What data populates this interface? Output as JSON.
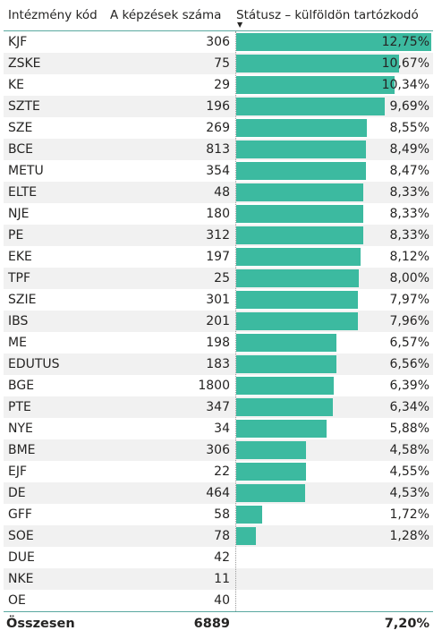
{
  "headers": {
    "code": "Intézmény kód",
    "count": "A képzések száma",
    "pct": "Státusz – külföldön tartózkodó"
  },
  "chart_data": {
    "type": "table",
    "bar_scale_max": 12.75,
    "rows": [
      {
        "code": "KJF",
        "count": "306",
        "pct": "12,75%",
        "value": 12.75
      },
      {
        "code": "ZSKE",
        "count": "75",
        "pct": "10,67%",
        "value": 10.67
      },
      {
        "code": "KE",
        "count": "29",
        "pct": "10,34%",
        "value": 10.34
      },
      {
        "code": "SZTE",
        "count": "196",
        "pct": "9,69%",
        "value": 9.69
      },
      {
        "code": "SZE",
        "count": "269",
        "pct": "8,55%",
        "value": 8.55
      },
      {
        "code": "BCE",
        "count": "813",
        "pct": "8,49%",
        "value": 8.49
      },
      {
        "code": "METU",
        "count": "354",
        "pct": "8,47%",
        "value": 8.47
      },
      {
        "code": "ELTE",
        "count": "48",
        "pct": "8,33%",
        "value": 8.33
      },
      {
        "code": "NJE",
        "count": "180",
        "pct": "8,33%",
        "value": 8.33
      },
      {
        "code": "PE",
        "count": "312",
        "pct": "8,33%",
        "value": 8.33
      },
      {
        "code": "EKE",
        "count": "197",
        "pct": "8,12%",
        "value": 8.12
      },
      {
        "code": "TPF",
        "count": "25",
        "pct": "8,00%",
        "value": 8.0
      },
      {
        "code": "SZIE",
        "count": "301",
        "pct": "7,97%",
        "value": 7.97
      },
      {
        "code": "IBS",
        "count": "201",
        "pct": "7,96%",
        "value": 7.96
      },
      {
        "code": "ME",
        "count": "198",
        "pct": "6,57%",
        "value": 6.57
      },
      {
        "code": "EDUTUS",
        "count": "183",
        "pct": "6,56%",
        "value": 6.56
      },
      {
        "code": "BGE",
        "count": "1800",
        "pct": "6,39%",
        "value": 6.39
      },
      {
        "code": "PTE",
        "count": "347",
        "pct": "6,34%",
        "value": 6.34
      },
      {
        "code": "NYE",
        "count": "34",
        "pct": "5,88%",
        "value": 5.88
      },
      {
        "code": "BME",
        "count": "306",
        "pct": "4,58%",
        "value": 4.58
      },
      {
        "code": "EJF",
        "count": "22",
        "pct": "4,55%",
        "value": 4.55
      },
      {
        "code": "DE",
        "count": "464",
        "pct": "4,53%",
        "value": 4.53
      },
      {
        "code": "GFF",
        "count": "58",
        "pct": "1,72%",
        "value": 1.72
      },
      {
        "code": "SOE",
        "count": "78",
        "pct": "1,28%",
        "value": 1.28
      },
      {
        "code": "DUE",
        "count": "42",
        "pct": "",
        "value": null
      },
      {
        "code": "NKE",
        "count": "11",
        "pct": "",
        "value": null
      },
      {
        "code": "OE",
        "count": "40",
        "pct": "",
        "value": null
      }
    ],
    "colors": {
      "bar": "#3cbaa0",
      "header_rule": "#5aa8a0",
      "alt_row": "#f1f1f1"
    }
  },
  "total": {
    "label": "Összesen",
    "count": "6889",
    "pct": "7,20%"
  }
}
